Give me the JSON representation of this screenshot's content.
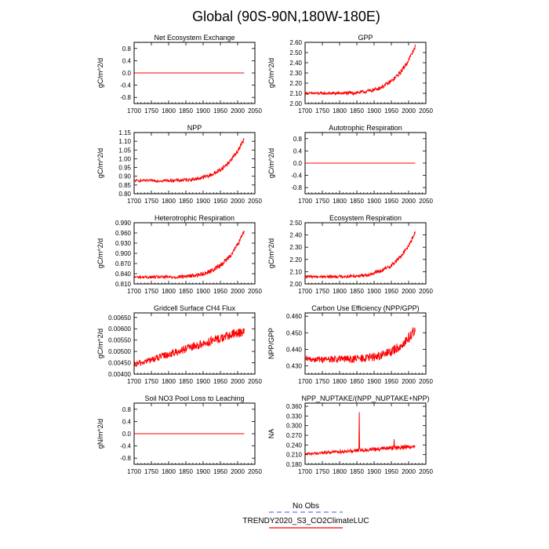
{
  "figure_title": "Global (90S-90N,180W-180E)",
  "legend": {
    "entries": [
      {
        "label": "No Obs",
        "color": "#6b6bff",
        "style": "dashed"
      },
      {
        "label": "TRENDY2020_S3_CO2ClimateLUC",
        "color": "#ff0000",
        "style": "solid"
      }
    ]
  },
  "chart_data": [
    {
      "type": "line",
      "id": "nee",
      "title": "Net Ecosystem Exchange",
      "ylabel": "gC/m^2/d",
      "xlim": [
        1700,
        2050
      ],
      "ylim": [
        -1.0,
        1.0
      ],
      "yticks": [
        "0.8",
        "0.4",
        "0.0",
        "-0.4",
        "-0.8"
      ],
      "ytick_values": [
        0.8,
        0.4,
        0.0,
        -0.4,
        -0.8
      ],
      "xticks": [
        "1700",
        "1750",
        "1800",
        "1850",
        "1900",
        "1950",
        "2000",
        "2050"
      ],
      "series": [
        {
          "name": "TRENDY2020_S3_CO2ClimateLUC",
          "color": "#ff0000",
          "shape": "flat",
          "x_range": [
            1700,
            2019
          ],
          "base": 0.0,
          "end": 0.0,
          "noise": 0.0
        }
      ]
    },
    {
      "type": "line",
      "id": "gpp",
      "title": "GPP",
      "ylabel": "gC/m^2/d",
      "xlim": [
        1700,
        2050
      ],
      "ylim": [
        2.0,
        2.6
      ],
      "yticks": [
        "2.60",
        "2.50",
        "2.40",
        "2.30",
        "2.20",
        "2.10",
        "2.00"
      ],
      "ytick_values": [
        2.6,
        2.5,
        2.4,
        2.3,
        2.2,
        2.1,
        2.0
      ],
      "xticks": [
        "1700",
        "1750",
        "1800",
        "1850",
        "1900",
        "1950",
        "2000",
        "2050"
      ],
      "series": [
        {
          "name": "TRENDY2020_S3_CO2ClimateLUC",
          "color": "#ff0000",
          "shape": "rise",
          "x_range": [
            1700,
            2019
          ],
          "base": 2.1,
          "end": 2.56,
          "noise": 0.012
        }
      ]
    },
    {
      "type": "line",
      "id": "npp",
      "title": "NPP",
      "ylabel": "gC/m^2/d",
      "xlim": [
        1700,
        2050
      ],
      "ylim": [
        0.8,
        1.15
      ],
      "yticks": [
        "1.15",
        "1.10",
        "1.05",
        "1.00",
        "0.95",
        "0.90",
        "0.85",
        "0.80"
      ],
      "ytick_values": [
        1.15,
        1.1,
        1.05,
        1.0,
        0.95,
        0.9,
        0.85,
        0.8
      ],
      "xticks": [
        "1700",
        "1750",
        "1800",
        "1850",
        "1900",
        "1950",
        "2000",
        "2050"
      ],
      "series": [
        {
          "name": "TRENDY2020_S3_CO2ClimateLUC",
          "color": "#ff0000",
          "shape": "rise",
          "x_range": [
            1700,
            2019
          ],
          "base": 0.875,
          "end": 1.115,
          "noise": 0.007
        }
      ]
    },
    {
      "type": "line",
      "id": "ar",
      "title": "Autotrophic Respiration",
      "ylabel": "gC/m^2/d",
      "xlim": [
        1700,
        2050
      ],
      "ylim": [
        -1.0,
        1.0
      ],
      "yticks": [
        "0.8",
        "0.4",
        "0.0",
        "-0.4",
        "-0.8"
      ],
      "ytick_values": [
        0.8,
        0.4,
        0.0,
        -0.4,
        -0.8
      ],
      "xticks": [
        "1700",
        "1750",
        "1800",
        "1850",
        "1900",
        "1950",
        "2000",
        "2050"
      ],
      "series": [
        {
          "name": "TRENDY2020_S3_CO2ClimateLUC",
          "color": "#ff0000",
          "shape": "flat",
          "x_range": [
            1700,
            2019
          ],
          "base": 0.0,
          "end": 0.0,
          "noise": 0.0
        }
      ]
    },
    {
      "type": "line",
      "id": "hr",
      "title": "Heterotrophic Respiration",
      "ylabel": "gC/m^2/d",
      "xlim": [
        1700,
        2050
      ],
      "ylim": [
        0.81,
        0.99
      ],
      "yticks": [
        "0.990",
        "0.960",
        "0.930",
        "0.900",
        "0.870",
        "0.840",
        "0.810"
      ],
      "ytick_values": [
        0.99,
        0.96,
        0.93,
        0.9,
        0.87,
        0.84,
        0.81
      ],
      "xticks": [
        "1700",
        "1750",
        "1800",
        "1850",
        "1900",
        "1950",
        "2000",
        "2050"
      ],
      "series": [
        {
          "name": "TRENDY2020_S3_CO2ClimateLUC",
          "color": "#ff0000",
          "shape": "rise",
          "x_range": [
            1700,
            2019
          ],
          "base": 0.83,
          "end": 0.965,
          "noise": 0.004
        }
      ]
    },
    {
      "type": "line",
      "id": "er",
      "title": "Ecosystem Respiration",
      "ylabel": "gC/m^2/d",
      "xlim": [
        1700,
        2050
      ],
      "ylim": [
        2.0,
        2.5
      ],
      "yticks": [
        "2.50",
        "2.40",
        "2.30",
        "2.20",
        "2.10",
        "2.00"
      ],
      "ytick_values": [
        2.5,
        2.4,
        2.3,
        2.2,
        2.1,
        2.0
      ],
      "xticks": [
        "1700",
        "1750",
        "1800",
        "1850",
        "1900",
        "1950",
        "2000",
        "2050"
      ],
      "series": [
        {
          "name": "TRENDY2020_S3_CO2ClimateLUC",
          "color": "#ff0000",
          "shape": "rise",
          "x_range": [
            1700,
            2019
          ],
          "base": 2.06,
          "end": 2.42,
          "noise": 0.01
        }
      ]
    },
    {
      "type": "line",
      "id": "ch4",
      "title": "Gridcell Surface CH4 Flux",
      "ylabel": "gC/m^2/d",
      "xlim": [
        1700,
        2050
      ],
      "ylim": [
        0.004,
        0.0067
      ],
      "yticks": [
        "0.00650",
        "0.00600",
        "0.00550",
        "0.00500",
        "0.00450",
        "0.00400"
      ],
      "ytick_values": [
        0.0065,
        0.006,
        0.0055,
        0.005,
        0.0045,
        0.004
      ],
      "xticks": [
        "1700",
        "1750",
        "1800",
        "1850",
        "1900",
        "1950",
        "2000",
        "2050"
      ],
      "series": [
        {
          "name": "TRENDY2020_S3_CO2ClimateLUC",
          "color": "#ff0000",
          "shape": "linear",
          "x_range": [
            1700,
            2019
          ],
          "base": 0.0044,
          "end": 0.0059,
          "noise": 0.00013
        }
      ]
    },
    {
      "type": "line",
      "id": "cue",
      "title": "Carbon Use Efficiency (NPP/GPP)",
      "ylabel": "NPP/GPP",
      "xlim": [
        1700,
        2050
      ],
      "ylim": [
        0.425,
        0.462
      ],
      "yticks": [
        "0.460",
        "0.450",
        "0.440",
        "0.430"
      ],
      "ytick_values": [
        0.46,
        0.45,
        0.44,
        0.43
      ],
      "xticks": [
        "1700",
        "1750",
        "1800",
        "1850",
        "1900",
        "1950",
        "2000",
        "2050"
      ],
      "series": [
        {
          "name": "TRENDY2020_S3_CO2ClimateLUC",
          "color": "#ff0000",
          "shape": "rise",
          "x_range": [
            1700,
            2019
          ],
          "base": 0.434,
          "end": 0.452,
          "noise": 0.0018
        }
      ]
    },
    {
      "type": "line",
      "id": "no3",
      "title": "Soil NO3 Pool Loss to Leaching",
      "ylabel": "gN/m^2/d",
      "xlim": [
        1700,
        2050
      ],
      "ylim": [
        -1.0,
        1.0
      ],
      "yticks": [
        "0.8",
        "0.4",
        "0.0",
        "-0.4",
        "-0.8"
      ],
      "ytick_values": [
        0.8,
        0.4,
        0.0,
        -0.4,
        -0.8
      ],
      "xticks": [
        "1700",
        "1750",
        "1800",
        "1850",
        "1900",
        "1950",
        "2000",
        "2050"
      ],
      "series": [
        {
          "name": "TRENDY2020_S3_CO2ClimateLUC",
          "color": "#ff0000",
          "shape": "flat",
          "x_range": [
            1700,
            2019
          ],
          "base": 0.0,
          "end": 0.0,
          "noise": 0.0
        }
      ]
    },
    {
      "type": "line",
      "id": "nup",
      "title": "NPP_NUPTAKE/(NPP_NUPTAKE+NPP)",
      "ylabel": "NA",
      "xlim": [
        1700,
        2050
      ],
      "ylim": [
        0.18,
        0.37
      ],
      "yticks": [
        "0.360",
        "0.330",
        "0.300",
        "0.270",
        "0.240",
        "0.210",
        "0.180"
      ],
      "ytick_values": [
        0.36,
        0.33,
        0.3,
        0.27,
        0.24,
        0.21,
        0.18
      ],
      "xticks": [
        "1700",
        "1750",
        "1800",
        "1850",
        "1900",
        "1950",
        "2000",
        "2050"
      ],
      "series": [
        {
          "name": "TRENDY2020_S3_CO2ClimateLUC",
          "color": "#ff0000",
          "shape": "linear",
          "x_range": [
            1700,
            2019
          ],
          "base": 0.212,
          "end": 0.236,
          "noise": 0.004,
          "spikes": [
            {
              "x": 1857,
              "y": 0.342
            },
            {
              "x": 1958,
              "y": 0.258
            }
          ]
        }
      ]
    }
  ]
}
